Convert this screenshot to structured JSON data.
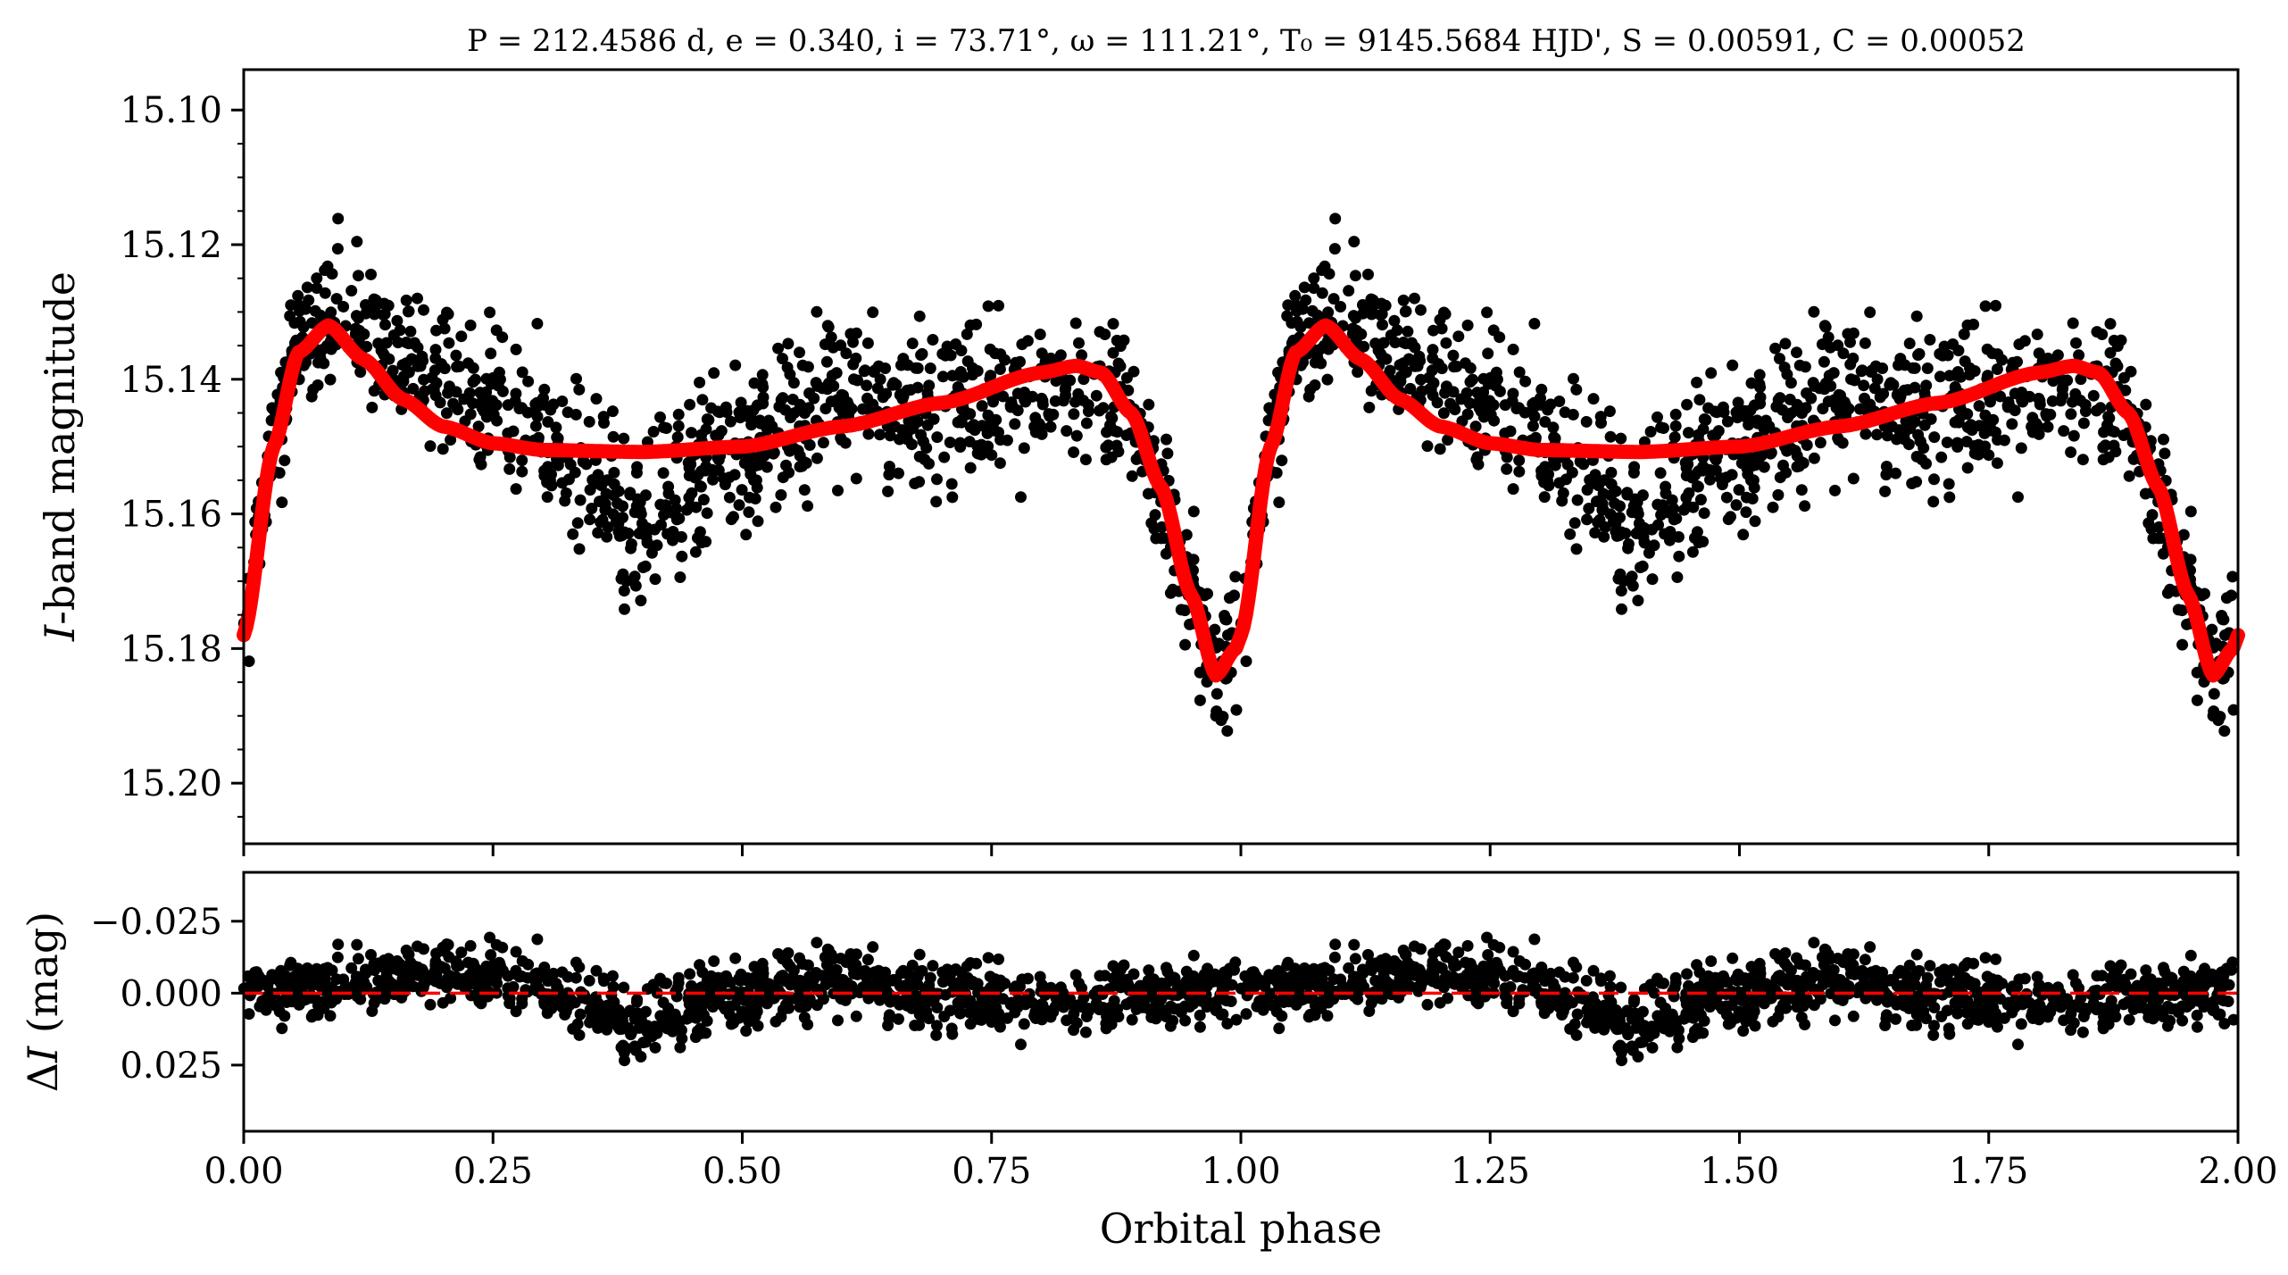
{
  "title": "P = 212.4586 d, e = 0.340, i = 73.71°, ω = 111.21°, T₀ = 9145.5684 HJD', S = 0.00591, C = 0.00052",
  "chart_data": [
    {
      "type": "scatter",
      "panel": "top",
      "ylabel": "I-band magnitude",
      "xlabel": "",
      "xlim": [
        0.0,
        2.0
      ],
      "ylim": [
        15.209,
        15.094
      ],
      "y_inverted": true,
      "yticks": [
        15.1,
        15.12,
        15.14,
        15.16,
        15.18,
        15.2
      ],
      "ytick_labels": [
        "15.10",
        "15.12",
        "15.14",
        "15.16",
        "15.18",
        "15.20"
      ],
      "xticks": [
        0.0,
        0.25,
        0.5,
        0.75,
        1.0,
        1.25,
        1.5,
        1.75,
        2.0
      ],
      "model_curve": {
        "color": "#ff0000",
        "phase": [
          0.0,
          0.03,
          0.055,
          0.085,
          0.12,
          0.16,
          0.2,
          0.25,
          0.3,
          0.4,
          0.5,
          0.6,
          0.7,
          0.8,
          0.835,
          0.86,
          0.89,
          0.92,
          0.95,
          0.975,
          0.995,
          1.0
        ],
        "mag": [
          15.178,
          15.15,
          15.136,
          15.132,
          15.137,
          15.143,
          15.147,
          15.1495,
          15.1505,
          15.1508,
          15.15,
          15.147,
          15.1435,
          15.139,
          15.138,
          15.139,
          15.145,
          15.156,
          15.172,
          15.184,
          15.18,
          15.178
        ]
      },
      "points": {
        "color": "#000000",
        "count_per_cycle": 1100,
        "scatter_mag": 0.0059
      }
    },
    {
      "type": "scatter",
      "panel": "bottom",
      "ylabel": "ΔI (mag)",
      "xlabel": "Orbital phase",
      "xlim": [
        0.0,
        2.0
      ],
      "ylim": [
        0.048,
        -0.042
      ],
      "y_inverted": true,
      "yticks": [
        -0.025,
        0.0,
        0.025
      ],
      "ytick_labels": [
        "−0.025",
        "0.000",
        "0.025"
      ],
      "xticks": [
        0.0,
        0.25,
        0.5,
        0.75,
        1.0,
        1.25,
        1.5,
        1.75,
        2.0
      ],
      "xtick_labels": [
        "0.00",
        "0.25",
        "0.50",
        "0.75",
        "1.00",
        "1.25",
        "1.50",
        "1.75",
        "2.00"
      ],
      "reference_line": {
        "y": 0.0,
        "style": "dashed",
        "color": "#ff0000"
      },
      "points": {
        "color": "#000000",
        "scatter_mag": 0.0059
      }
    }
  ]
}
